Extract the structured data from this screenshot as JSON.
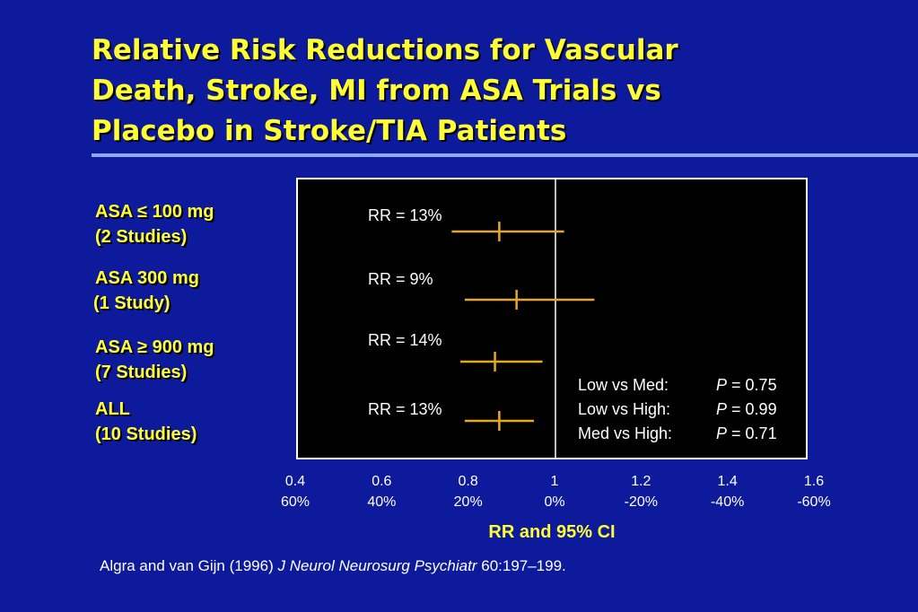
{
  "title_lines": [
    "Relative Risk Reductions for Vascular",
    "Death, Stroke, MI from ASA Trials vs",
    "Placebo in Stroke/TIA Patients"
  ],
  "groups": [
    {
      "line1": "ASA ≤ 100 mg",
      "line2": "(2 Studies)"
    },
    {
      "line1": "ASA 300 mg",
      "line2": "(1 Study)"
    },
    {
      "line1": "ASA ≥ 900 mg",
      "line2": "(7 Studies)"
    },
    {
      "line1": "ALL",
      "line2": "(10 Studies)"
    }
  ],
  "stats": [
    {
      "comparison": "Low vs Med:",
      "p_label": "P",
      "p_value": "= 0.75"
    },
    {
      "comparison": "Low vs High:",
      "p_label": "P",
      "p_value": "= 0.99"
    },
    {
      "comparison": "Med vs High:",
      "p_label": "P",
      "p_value": "= 0.71"
    }
  ],
  "citation": {
    "authors": "Algra and van Gijn (1996)",
    "journal": "J Neurol Neurosurg Psychiatr",
    "ref": "60:197–199."
  },
  "colors": {
    "background": "#0d1a9c",
    "title": "#ffff33",
    "ci_line": "#e8a825",
    "reference_line": "#ffffff"
  },
  "chart_data": {
    "type": "forest",
    "xlabel": "RR and 95% CI",
    "xlim": [
      0.4,
      1.6
    ],
    "reference_value": 1,
    "x_ticks": [
      0.4,
      0.6,
      0.8,
      1,
      1.2,
      1.4,
      1.6
    ],
    "x_tick_labels": [
      "0.4",
      "0.6",
      "0.8",
      "1",
      "1.2",
      "1.4",
      "1.6"
    ],
    "x_tick_labels_secondary": [
      "60%",
      "40%",
      "20%",
      "0%",
      "-20%",
      "-40%",
      "-60%"
    ],
    "estimates": [
      {
        "label": "RR = 13%",
        "rr": 0.87,
        "ci_low": 0.76,
        "ci_high": 1.02
      },
      {
        "label": "RR = 9%",
        "rr": 0.91,
        "ci_low": 0.79,
        "ci_high": 1.09
      },
      {
        "label": "RR = 14%",
        "rr": 0.86,
        "ci_low": 0.78,
        "ci_high": 0.97
      },
      {
        "label": "RR = 13%",
        "rr": 0.87,
        "ci_low": 0.79,
        "ci_high": 0.95
      }
    ]
  }
}
